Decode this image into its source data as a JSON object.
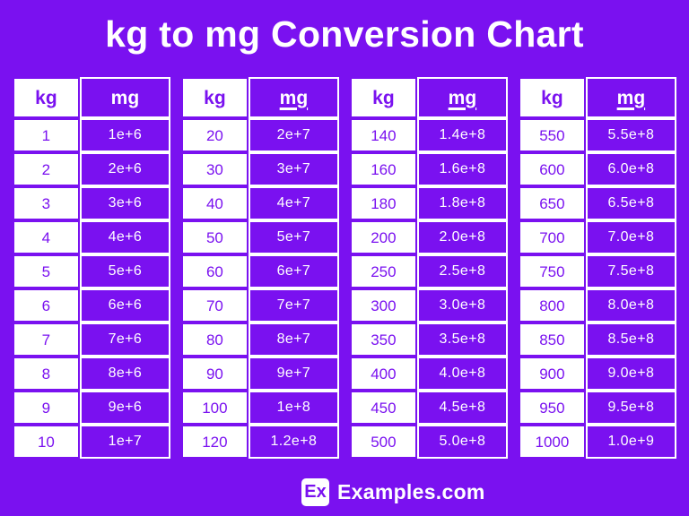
{
  "chart_data": {
    "type": "table",
    "title": "kg to mg Conversion Chart",
    "column_headers": [
      "kg",
      "mg"
    ],
    "tables": [
      {
        "headers": [
          "kg",
          "mg"
        ],
        "mg_header_underlined": false,
        "rows": [
          [
            "1",
            "1e+6"
          ],
          [
            "2",
            "2e+6"
          ],
          [
            "3",
            "3e+6"
          ],
          [
            "4",
            "4e+6"
          ],
          [
            "5",
            "5e+6"
          ],
          [
            "6",
            "6e+6"
          ],
          [
            "7",
            "7e+6"
          ],
          [
            "8",
            "8e+6"
          ],
          [
            "9",
            "9e+6"
          ],
          [
            "10",
            "1e+7"
          ]
        ]
      },
      {
        "headers": [
          "kg",
          "mg"
        ],
        "mg_header_underlined": true,
        "rows": [
          [
            "20",
            "2e+7"
          ],
          [
            "30",
            "3e+7"
          ],
          [
            "40",
            "4e+7"
          ],
          [
            "50",
            "5e+7"
          ],
          [
            "60",
            "6e+7"
          ],
          [
            "70",
            "7e+7"
          ],
          [
            "80",
            "8e+7"
          ],
          [
            "90",
            "9e+7"
          ],
          [
            "100",
            "1e+8"
          ],
          [
            "120",
            "1.2e+8"
          ]
        ]
      },
      {
        "headers": [
          "kg",
          "mg"
        ],
        "mg_header_underlined": true,
        "rows": [
          [
            "140",
            "1.4e+8"
          ],
          [
            "160",
            "1.6e+8"
          ],
          [
            "180",
            "1.8e+8"
          ],
          [
            "200",
            "2.0e+8"
          ],
          [
            "250",
            "2.5e+8"
          ],
          [
            "300",
            "3.0e+8"
          ],
          [
            "350",
            "3.5e+8"
          ],
          [
            "400",
            "4.0e+8"
          ],
          [
            "450",
            "4.5e+8"
          ],
          [
            "500",
            "5.0e+8"
          ]
        ]
      },
      {
        "headers": [
          "kg",
          "mg"
        ],
        "mg_header_underlined": true,
        "rows": [
          [
            "550",
            "5.5e+8"
          ],
          [
            "600",
            "6.0e+8"
          ],
          [
            "650",
            "6.5e+8"
          ],
          [
            "700",
            "7.0e+8"
          ],
          [
            "750",
            "7.5e+8"
          ],
          [
            "800",
            "8.0e+8"
          ],
          [
            "850",
            "8.5e+8"
          ],
          [
            "900",
            "9.0e+8"
          ],
          [
            "950",
            "9.5e+8"
          ],
          [
            "1000",
            "1.0e+9"
          ]
        ]
      }
    ]
  },
  "footer": {
    "logo_text": "Ex",
    "site_name": "Examples.com"
  },
  "colors": {
    "background_purple": "#7A11F0",
    "cell_purple": "#7A11F0",
    "white": "#FFFFFF"
  }
}
